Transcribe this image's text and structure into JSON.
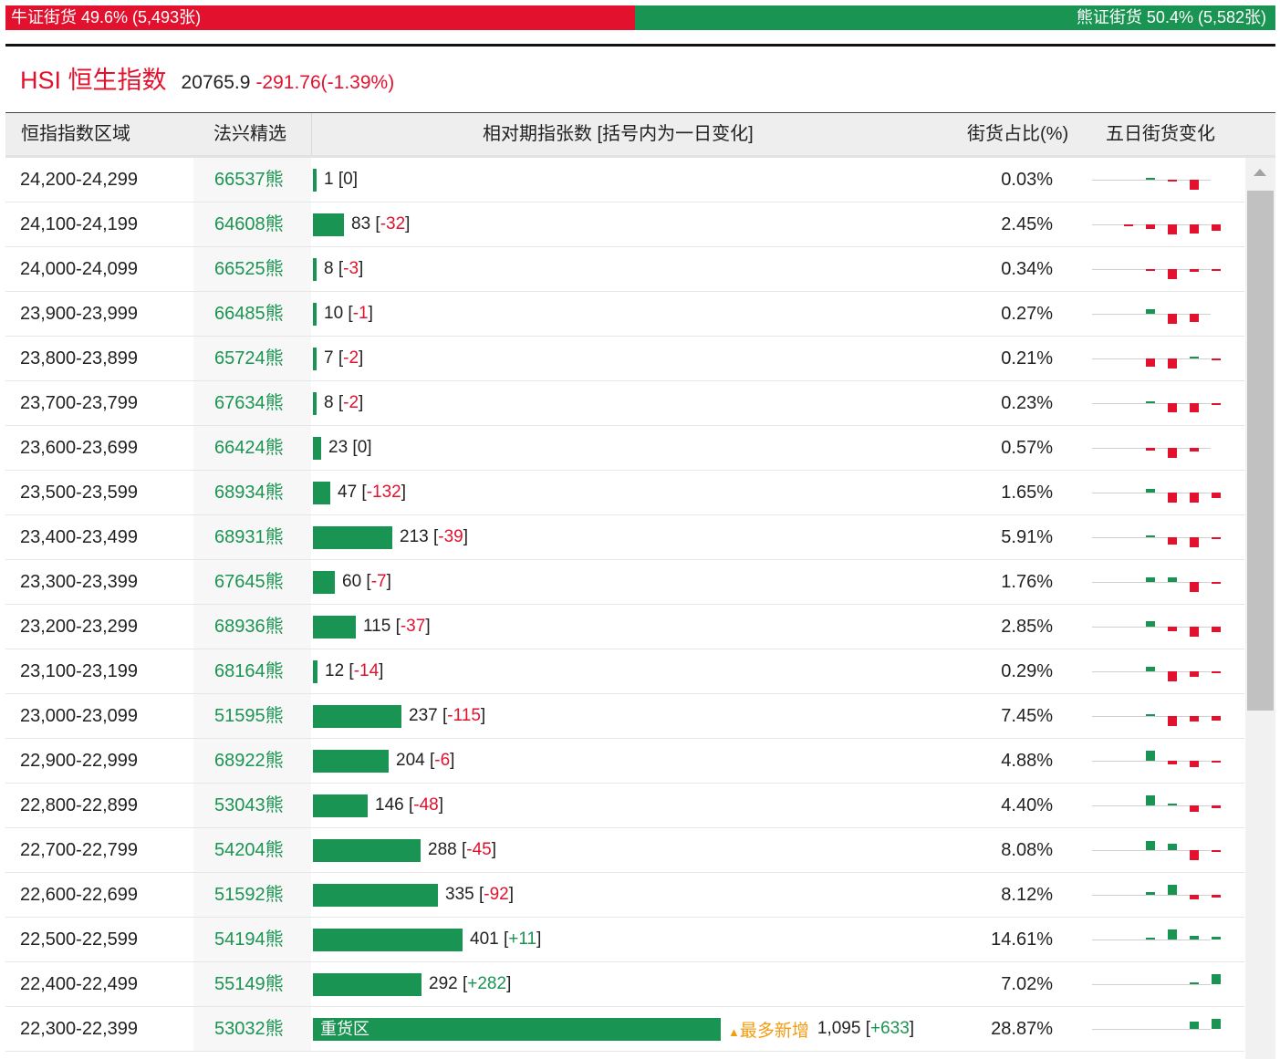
{
  "ratio": {
    "bull_label": "牛证街货 49.6% (5,493张)",
    "bear_label": "熊证街货 50.4% (5,582张)",
    "bull_color": "#e2112e",
    "bear_color": "#1a9452"
  },
  "index": {
    "name": "HSI 恒生指数",
    "value": "20765.9",
    "change": "-291.76(-1.39%)"
  },
  "headers": {
    "range": "恒指指数区域",
    "pick": "法兴精选",
    "chart": "相对期指张数 [括号内为一日变化]",
    "pct": "街货占比(%)",
    "trend": "五日街货变化"
  },
  "hot_label": "最多新增",
  "heavy_label": "重货区",
  "rows": [
    {
      "range": "24,200-24,299",
      "pick": "66537熊",
      "count": 1,
      "count_text": "1",
      "delta": "0",
      "pct": "0.03%",
      "spark": [
        0,
        1,
        -1,
        -12,
        0
      ]
    },
    {
      "range": "24,100-24,199",
      "pick": "64608熊",
      "count": 83,
      "count_text": "83",
      "delta": "-32",
      "pct": "2.45%",
      "spark": [
        -2,
        -5,
        -12,
        -11,
        -8
      ]
    },
    {
      "range": "24,000-24,099",
      "pick": "66525熊",
      "count": 8,
      "count_text": "8",
      "delta": "-3",
      "pct": "0.34%",
      "spark": [
        0,
        -2,
        -12,
        -3,
        -1
      ]
    },
    {
      "range": "23,900-23,999",
      "pick": "66485熊",
      "count": 10,
      "count_text": "10",
      "delta": "-1",
      "pct": "0.27%",
      "spark": [
        0,
        5,
        -12,
        -10,
        0
      ]
    },
    {
      "range": "23,800-23,899",
      "pick": "65724熊",
      "count": 7,
      "count_text": "7",
      "delta": "-2",
      "pct": "0.21%",
      "spark": [
        0,
        -10,
        -12,
        1,
        -2
      ]
    },
    {
      "range": "23,700-23,799",
      "pick": "67634熊",
      "count": 8,
      "count_text": "8",
      "delta": "-2",
      "pct": "0.23%",
      "spark": [
        0,
        2,
        -11,
        -11,
        -1
      ]
    },
    {
      "range": "23,600-23,699",
      "pick": "66424熊",
      "count": 23,
      "count_text": "23",
      "delta": "0",
      "pct": "0.57%",
      "spark": [
        0,
        -3,
        -12,
        -4,
        0
      ]
    },
    {
      "range": "23,500-23,599",
      "pick": "68934熊",
      "count": 47,
      "count_text": "47",
      "delta": "-132",
      "pct": "1.65%",
      "spark": [
        0,
        4,
        -12,
        -12,
        -6
      ]
    },
    {
      "range": "23,400-23,499",
      "pick": "68931熊",
      "count": 213,
      "count_text": "213",
      "delta": "-39",
      "pct": "5.91%",
      "spark": [
        0,
        1,
        -9,
        -12,
        -2
      ]
    },
    {
      "range": "23,300-23,399",
      "pick": "67645熊",
      "count": 60,
      "count_text": "60",
      "delta": "-7",
      "pct": "1.76%",
      "spark": [
        0,
        5,
        5,
        -12,
        -1
      ]
    },
    {
      "range": "23,200-23,299",
      "pick": "68936熊",
      "count": 115,
      "count_text": "115",
      "delta": "-37",
      "pct": "2.85%",
      "spark": [
        0,
        7,
        -5,
        -12,
        -6
      ]
    },
    {
      "range": "23,100-23,199",
      "pick": "68164熊",
      "count": 12,
      "count_text": "12",
      "delta": "-14",
      "pct": "0.29%",
      "spark": [
        0,
        5,
        -12,
        -7,
        -2
      ]
    },
    {
      "range": "23,000-23,099",
      "pick": "51595熊",
      "count": 237,
      "count_text": "237",
      "delta": "-115",
      "pct": "7.45%",
      "spark": [
        0,
        2,
        -12,
        -7,
        -5
      ]
    },
    {
      "range": "22,900-22,999",
      "pick": "68922熊",
      "count": 204,
      "count_text": "204",
      "delta": "-6",
      "pct": "4.88%",
      "spark": [
        0,
        12,
        -4,
        -8,
        -1
      ]
    },
    {
      "range": "22,800-22,899",
      "pick": "53043熊",
      "count": 146,
      "count_text": "146",
      "delta": "-48",
      "pct": "4.40%",
      "spark": [
        0,
        12,
        1,
        -8,
        -3
      ]
    },
    {
      "range": "22,700-22,799",
      "pick": "54204熊",
      "count": 288,
      "count_text": "288",
      "delta": "-45",
      "pct": "8.08%",
      "spark": [
        0,
        11,
        8,
        -12,
        -2
      ]
    },
    {
      "range": "22,600-22,699",
      "pick": "51592熊",
      "count": 335,
      "count_text": "335",
      "delta": "-92",
      "pct": "8.12%",
      "spark": [
        0,
        3,
        12,
        -5,
        -3
      ]
    },
    {
      "range": "22,500-22,599",
      "pick": "54194熊",
      "count": 401,
      "count_text": "401",
      "delta": "+11",
      "pct": "14.61%",
      "spark": [
        0,
        1,
        12,
        4,
        3
      ]
    },
    {
      "range": "22,400-22,499",
      "pick": "55149熊",
      "count": 292,
      "count_text": "292",
      "delta": "+282",
      "pct": "7.02%",
      "spark": [
        0,
        0,
        0,
        1,
        12
      ]
    },
    {
      "range": "22,300-22,399",
      "pick": "53032熊",
      "count": 1095,
      "count_text": "1,095",
      "delta": "+633",
      "pct": "28.87%",
      "spark": [
        0,
        0,
        0,
        9,
        12
      ],
      "heavy": true,
      "hot": true
    }
  ]
}
